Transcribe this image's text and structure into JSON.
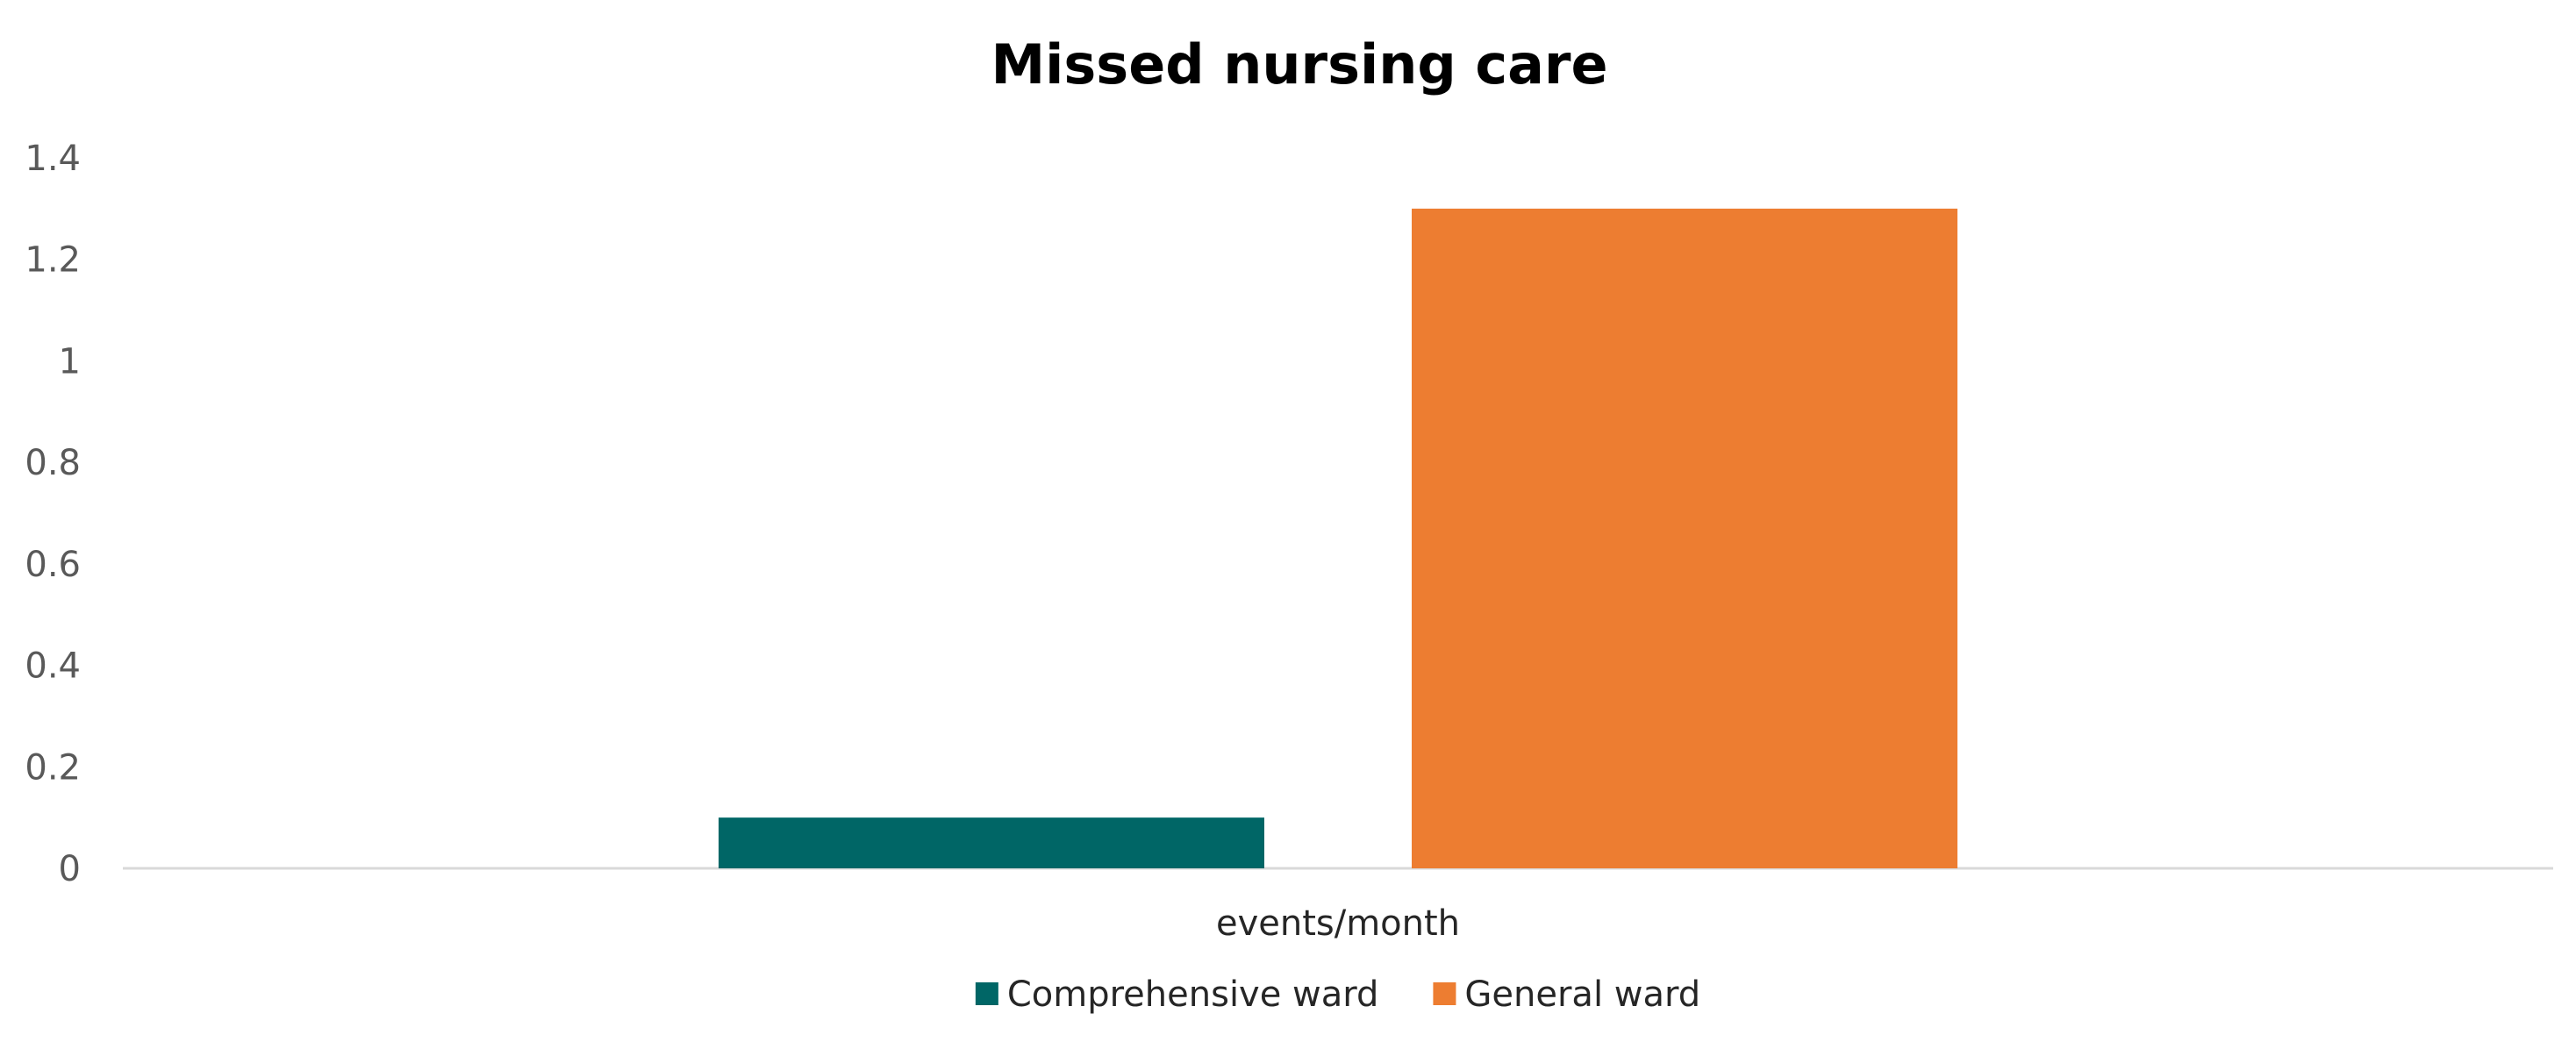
{
  "chart_data": {
    "type": "bar",
    "title": "Missed nursing care",
    "xlabel": "",
    "ylabel": "",
    "categories": [
      "events/month"
    ],
    "series": [
      {
        "name": "Comprehensive ward",
        "values": [
          0.1
        ],
        "color": "#006666"
      },
      {
        "name": "General ward",
        "values": [
          1.3
        ],
        "color": "#ED7D31"
      }
    ],
    "ylim": [
      0,
      1.4
    ],
    "yticks": [
      "0",
      "0.2",
      "0.4",
      "0.6",
      "0.8",
      "1",
      "1.2",
      "1.4"
    ],
    "grid": false,
    "legend_position": "bottom"
  }
}
